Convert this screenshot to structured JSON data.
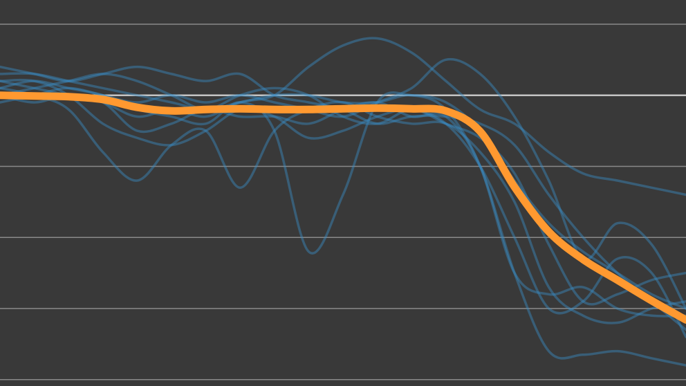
{
  "chart_data": {
    "type": "line",
    "x": [
      0,
      1,
      2,
      3,
      4,
      5,
      6,
      7,
      8,
      9,
      10,
      11,
      12,
      13,
      14,
      15,
      16,
      17,
      18,
      19,
      20
    ],
    "xlim": [
      0,
      20
    ],
    "ylim": [
      -0.09,
      5.34
    ],
    "yticks": [
      0,
      1,
      2,
      3,
      4,
      5
    ],
    "grid": true,
    "highlight_ytick": 4,
    "background": "#393939",
    "series": [
      {
        "color": "#3a8cc4",
        "values": [
          4.3,
          4.3,
          4.2,
          4.1,
          4.0,
          3.9,
          3.8,
          3.9,
          4.0,
          4.0,
          3.9,
          3.9,
          4.0,
          3.8,
          3.0,
          1.5,
          1.2,
          1.3,
          1.0,
          0.9,
          0.9
        ]
      },
      {
        "color": "#3a8cc4",
        "values": [
          4.1,
          4.2,
          4.1,
          4.0,
          3.8,
          3.7,
          3.6,
          3.9,
          3.5,
          1.8,
          2.6,
          3.9,
          4.0,
          3.9,
          3.5,
          2.8,
          2.2,
          1.8,
          1.5,
          1.2,
          1.0
        ]
      },
      {
        "color": "#3a8cc4",
        "values": [
          4.2,
          4.1,
          4.0,
          3.9,
          3.7,
          3.8,
          3.7,
          3.9,
          4.0,
          4.4,
          4.7,
          4.8,
          4.6,
          4.2,
          3.8,
          3.6,
          3.2,
          2.9,
          2.8,
          2.7,
          2.6
        ]
      },
      {
        "color": "#3a8cc4",
        "values": [
          4.1,
          4.0,
          3.8,
          3.2,
          2.8,
          3.3,
          3.5,
          2.7,
          3.5,
          3.8,
          3.9,
          3.7,
          3.6,
          3.6,
          3.2,
          2.5,
          1.3,
          0.9,
          0.8,
          1.0,
          1.1
        ]
      },
      {
        "color": "#3a8cc4",
        "values": [
          3.9,
          4.0,
          4.1,
          4.0,
          3.9,
          4.0,
          3.9,
          4.0,
          3.9,
          3.8,
          3.7,
          3.9,
          4.1,
          4.5,
          4.3,
          3.7,
          2.8,
          1.7,
          2.2,
          1.9,
          1.0
        ]
      },
      {
        "color": "#3a8cc4",
        "values": [
          4.0,
          3.9,
          4.0,
          3.9,
          3.5,
          3.6,
          3.8,
          3.7,
          3.7,
          3.6,
          3.8,
          3.9,
          3.7,
          3.7,
          3.0,
          1.5,
          0.4,
          0.35,
          0.4,
          0.3,
          0.2
        ]
      },
      {
        "color": "#3a8cc4",
        "values": [
          4.4,
          4.3,
          4.2,
          4.3,
          4.4,
          4.3,
          4.2,
          4.3,
          4.0,
          3.9,
          3.8,
          3.6,
          3.7,
          3.7,
          3.6,
          3.3,
          2.6,
          2.0,
          1.5,
          1.1,
          0.7
        ]
      },
      {
        "color": "#3a8cc4",
        "values": [
          4.0,
          4.1,
          4.2,
          4.3,
          4.2,
          4.0,
          3.8,
          4.0,
          4.1,
          4.0,
          3.7,
          3.6,
          3.8,
          3.6,
          3.4,
          2.9,
          1.9,
          1.1,
          1.2,
          1.4,
          1.5
        ]
      },
      {
        "color": "#3a8cc4",
        "values": [
          4.2,
          4.2,
          4.0,
          3.6,
          3.4,
          3.3,
          3.5,
          3.8,
          3.7,
          3.4,
          3.5,
          3.7,
          3.8,
          3.6,
          3.0,
          2.0,
          1.0,
          1.1,
          1.7,
          1.5,
          0.6
        ]
      },
      {
        "color": "#ff9930",
        "highlight": true,
        "values": [
          4.0,
          3.99,
          3.98,
          3.94,
          3.83,
          3.78,
          3.8,
          3.81,
          3.8,
          3.8,
          3.81,
          3.82,
          3.81,
          3.78,
          3.49,
          2.71,
          2.08,
          1.69,
          1.4,
          1.11,
          0.84
        ]
      }
    ]
  }
}
